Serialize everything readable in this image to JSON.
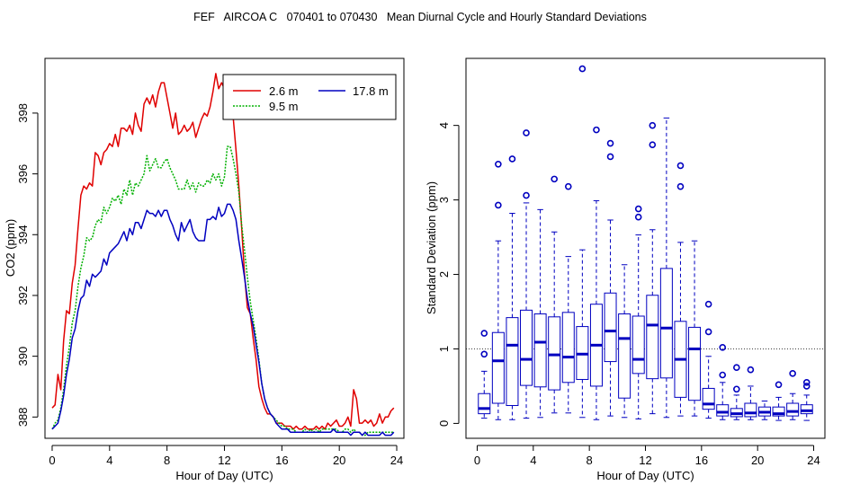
{
  "title": "FEF   AIRCOA C   070401 to 070430   Mean Diurnal Cycle and Hourly Standard Deviations",
  "colors": {
    "series_2_6": "#e00000",
    "series_9_5": "#00b000",
    "series_17_8": "#0000c0",
    "box": "#0000c0",
    "axis": "#000000"
  },
  "chart_data": [
    {
      "type": "line",
      "xlabel": "Hour of Day (UTC)",
      "ylabel": "CO2 (ppm)",
      "xlim": [
        -0.5,
        24.5
      ],
      "ylim": [
        387.3,
        399.8
      ],
      "xticks": [
        0,
        4,
        8,
        12,
        16,
        20,
        24
      ],
      "yticks": [
        388,
        390,
        392,
        394,
        396,
        398
      ],
      "legend_position": "top-right",
      "series": [
        {
          "name": "2.6 m",
          "color": "#e00000",
          "x": [
            0,
            0.2,
            0.4,
            0.6,
            0.8,
            1.0,
            1.2,
            1.4,
            1.6,
            1.8,
            2.0,
            2.2,
            2.4,
            2.6,
            2.8,
            3.0,
            3.2,
            3.4,
            3.6,
            3.8,
            4.0,
            4.2,
            4.4,
            4.6,
            4.8,
            5.0,
            5.2,
            5.4,
            5.6,
            5.8,
            6.0,
            6.2,
            6.4,
            6.6,
            6.8,
            7.0,
            7.2,
            7.4,
            7.6,
            7.8,
            8.0,
            8.2,
            8.4,
            8.6,
            8.8,
            9.0,
            9.2,
            9.4,
            9.6,
            9.8,
            10.0,
            10.2,
            10.4,
            10.6,
            10.8,
            11.0,
            11.2,
            11.4,
            11.6,
            11.8,
            12.0,
            12.2,
            12.4,
            12.6,
            12.8,
            13.0,
            13.2,
            13.4,
            13.6,
            13.8,
            14.0,
            14.2,
            14.4,
            14.6,
            14.8,
            15.0,
            15.2,
            15.4,
            15.6,
            15.8,
            16.0,
            16.2,
            16.4,
            16.6,
            16.8,
            17.0,
            17.2,
            17.4,
            17.6,
            17.8,
            18.0,
            18.2,
            18.4,
            18.6,
            18.8,
            19.0,
            19.2,
            19.4,
            19.6,
            19.8,
            20.0,
            20.2,
            20.4,
            20.6,
            20.8,
            21.0,
            21.2,
            21.4,
            21.6,
            21.8,
            22.0,
            22.2,
            22.4,
            22.6,
            22.8,
            23.0,
            23.2,
            23.4,
            23.6,
            23.8
          ],
          "y": [
            388.3,
            388.4,
            389.4,
            388.9,
            390.5,
            391.5,
            391.4,
            392.4,
            393.0,
            394.2,
            395.3,
            395.6,
            395.5,
            395.7,
            395.6,
            396.7,
            396.6,
            396.3,
            396.7,
            396.8,
            397.0,
            396.9,
            397.3,
            396.9,
            397.5,
            397.5,
            397.4,
            397.6,
            397.3,
            398.0,
            397.6,
            397.4,
            398.3,
            398.5,
            398.3,
            398.6,
            398.2,
            398.7,
            399.0,
            399.0,
            398.5,
            398.0,
            397.5,
            398.0,
            397.3,
            397.4,
            397.6,
            397.4,
            397.5,
            397.7,
            397.2,
            397.5,
            397.8,
            398.0,
            397.9,
            398.2,
            398.7,
            399.3,
            398.8,
            399.0,
            398.8,
            398.5,
            398.2,
            397.9,
            396.8,
            395.6,
            394.2,
            392.7,
            391.6,
            391.4,
            390.6,
            389.9,
            389.0,
            388.6,
            388.3,
            388.1,
            388.1,
            388.0,
            387.8,
            387.8,
            387.8,
            387.7,
            387.7,
            387.7,
            387.6,
            387.7,
            387.6,
            387.6,
            387.7,
            387.6,
            387.6,
            387.6,
            387.7,
            387.6,
            387.7,
            387.6,
            387.8,
            387.7,
            387.8,
            387.9,
            387.7,
            387.7,
            387.8,
            388.0,
            387.7,
            388.9,
            388.6,
            387.8,
            387.8,
            387.9,
            387.8,
            387.9,
            387.7,
            387.8,
            388.1,
            387.8,
            388.0,
            388.0,
            388.2,
            388.3
          ],
          "legend_label": "2.6 m"
        },
        {
          "name": "9.5 m",
          "color": "#00b000",
          "x": [
            0,
            0.2,
            0.4,
            0.6,
            0.8,
            1.0,
            1.2,
            1.4,
            1.6,
            1.8,
            2.0,
            2.2,
            2.4,
            2.6,
            2.8,
            3.0,
            3.2,
            3.4,
            3.6,
            3.8,
            4.0,
            4.2,
            4.4,
            4.6,
            4.8,
            5.0,
            5.2,
            5.4,
            5.6,
            5.8,
            6.0,
            6.2,
            6.4,
            6.6,
            6.8,
            7.0,
            7.2,
            7.4,
            7.6,
            7.8,
            8.0,
            8.2,
            8.4,
            8.6,
            8.8,
            9.0,
            9.2,
            9.4,
            9.6,
            9.8,
            10.0,
            10.2,
            10.4,
            10.6,
            10.8,
            11.0,
            11.2,
            11.4,
            11.6,
            11.8,
            12.0,
            12.2,
            12.4,
            12.6,
            12.8,
            13.0,
            13.2,
            13.4,
            13.6,
            13.8,
            14.0,
            14.2,
            14.4,
            14.6,
            14.8,
            15.0,
            15.2,
            15.4,
            15.6,
            15.8,
            16.0,
            16.2,
            16.4,
            16.6,
            16.8,
            17.0,
            17.2,
            17.4,
            17.6,
            17.8,
            18.0,
            18.2,
            18.4,
            18.6,
            18.8,
            19.0,
            19.2,
            19.4,
            19.6,
            19.8,
            20.0,
            20.2,
            20.4,
            20.6,
            20.8,
            21.0,
            21.2,
            21.4,
            21.6,
            21.8,
            22.0,
            22.2,
            22.4,
            22.6,
            22.8,
            23.0,
            23.2,
            23.4,
            23.6,
            23.8
          ],
          "y": [
            387.6,
            387.8,
            387.9,
            388.3,
            388.9,
            389.7,
            390.3,
            391.1,
            391.5,
            392.3,
            392.9,
            393.3,
            393.9,
            393.8,
            393.9,
            394.3,
            394.5,
            394.4,
            394.9,
            394.7,
            394.9,
            395.2,
            395.1,
            395.3,
            395.0,
            395.5,
            395.3,
            395.8,
            395.3,
            395.7,
            395.6,
            395.8,
            396.0,
            396.6,
            396.1,
            396.3,
            396.5,
            396.2,
            396.2,
            396.4,
            396.5,
            396.2,
            396.0,
            395.8,
            395.5,
            395.5,
            395.5,
            395.8,
            395.5,
            395.7,
            395.4,
            395.7,
            395.6,
            395.6,
            395.8,
            395.7,
            396.0,
            395.8,
            396.0,
            395.6,
            395.9,
            396.9,
            396.9,
            396.5,
            396.0,
            395.4,
            394.3,
            393.5,
            392.6,
            391.8,
            391.2,
            390.6,
            389.9,
            389.1,
            388.6,
            388.3,
            388.1,
            388.0,
            387.9,
            387.8,
            387.7,
            387.7,
            387.6,
            387.6,
            387.6,
            387.5,
            387.5,
            387.5,
            387.6,
            387.5,
            387.6,
            387.5,
            387.6,
            387.5,
            387.6,
            387.6,
            387.6,
            387.6,
            387.6,
            387.6,
            387.5,
            387.5,
            387.6,
            387.6,
            387.5,
            387.6,
            387.5,
            387.5,
            387.4,
            387.4,
            387.5,
            387.5,
            387.5,
            387.5,
            387.5,
            387.5,
            387.5,
            387.5,
            387.5,
            387.5
          ],
          "legend_label": "9.5 m"
        },
        {
          "name": "17.8 m",
          "color": "#0000c0",
          "x": [
            0,
            0.2,
            0.4,
            0.6,
            0.8,
            1.0,
            1.2,
            1.4,
            1.6,
            1.8,
            2.0,
            2.2,
            2.4,
            2.6,
            2.8,
            3.0,
            3.2,
            3.4,
            3.6,
            3.8,
            4.0,
            4.2,
            4.4,
            4.6,
            4.8,
            5.0,
            5.2,
            5.4,
            5.6,
            5.8,
            6.0,
            6.2,
            6.4,
            6.6,
            6.8,
            7.0,
            7.2,
            7.4,
            7.6,
            7.8,
            8.0,
            8.2,
            8.4,
            8.6,
            8.8,
            9.0,
            9.2,
            9.4,
            9.6,
            9.8,
            10.0,
            10.2,
            10.4,
            10.6,
            10.8,
            11.0,
            11.2,
            11.4,
            11.6,
            11.8,
            12.0,
            12.2,
            12.4,
            12.6,
            12.8,
            13.0,
            13.2,
            13.4,
            13.6,
            13.8,
            14.0,
            14.2,
            14.4,
            14.6,
            14.8,
            15.0,
            15.2,
            15.4,
            15.6,
            15.8,
            16.0,
            16.2,
            16.4,
            16.6,
            16.8,
            17.0,
            17.2,
            17.4,
            17.6,
            17.8,
            18.0,
            18.2,
            18.4,
            18.6,
            18.8,
            19.0,
            19.2,
            19.4,
            19.6,
            19.8,
            20.0,
            20.2,
            20.4,
            20.6,
            20.8,
            21.0,
            21.2,
            21.4,
            21.6,
            21.8,
            22.0,
            22.2,
            22.4,
            22.6,
            22.8,
            23.0,
            23.2,
            23.4,
            23.6,
            23.8
          ],
          "y": [
            387.6,
            387.7,
            387.8,
            388.2,
            388.7,
            389.4,
            389.9,
            390.6,
            390.9,
            391.5,
            391.9,
            392.0,
            392.5,
            392.3,
            392.7,
            392.6,
            392.7,
            392.8,
            393.2,
            393.0,
            393.4,
            393.5,
            393.6,
            393.7,
            393.9,
            394.1,
            393.8,
            394.2,
            394.0,
            394.4,
            394.4,
            394.2,
            394.5,
            394.8,
            394.7,
            394.7,
            394.6,
            394.8,
            394.6,
            394.8,
            394.8,
            394.5,
            394.3,
            394.0,
            393.8,
            394.4,
            394.1,
            394.3,
            394.5,
            394.1,
            393.9,
            393.8,
            393.8,
            393.8,
            394.5,
            394.5,
            394.6,
            394.5,
            394.9,
            394.6,
            394.7,
            395.0,
            395.0,
            394.8,
            394.5,
            393.8,
            393.2,
            392.6,
            391.9,
            391.4,
            391.0,
            390.4,
            389.8,
            389.1,
            388.6,
            388.3,
            388.1,
            388.0,
            387.8,
            387.7,
            387.6,
            387.6,
            387.6,
            387.5,
            387.5,
            387.5,
            387.5,
            387.5,
            387.5,
            387.5,
            387.5,
            387.5,
            387.5,
            387.5,
            387.5,
            387.5,
            387.5,
            387.5,
            387.6,
            387.5,
            387.5,
            387.5,
            387.5,
            387.5,
            387.4,
            387.5,
            387.5,
            387.5,
            387.4,
            387.5,
            387.4,
            387.4,
            387.4,
            387.4,
            387.4,
            387.5,
            387.4,
            387.4,
            387.4,
            387.5
          ],
          "legend_label": "17.8 m"
        }
      ]
    },
    {
      "type": "box",
      "xlabel": "Hour of Day (UTC)",
      "ylabel": "Standard Deviation (ppm)",
      "xlim": [
        -0.8,
        24.8
      ],
      "ylim": [
        -0.2,
        4.9
      ],
      "xticks": [
        0,
        4,
        8,
        12,
        16,
        20,
        24
      ],
      "yticks": [
        0,
        1,
        2,
        3,
        4
      ],
      "reference_line": 1,
      "boxes": [
        {
          "x": 0.5,
          "min": 0.07,
          "q1": 0.13,
          "median": 0.2,
          "q3": 0.4,
          "max": 0.7,
          "outliers": [
            0.93,
            1.21
          ]
        },
        {
          "x": 1.5,
          "min": 0.05,
          "q1": 0.27,
          "median": 0.84,
          "q3": 1.22,
          "max": 2.45,
          "outliers": [
            2.93,
            3.48
          ]
        },
        {
          "x": 2.5,
          "min": 0.05,
          "q1": 0.24,
          "median": 1.05,
          "q3": 1.42,
          "max": 2.82,
          "outliers": [
            3.55
          ]
        },
        {
          "x": 3.5,
          "min": 0.07,
          "q1": 0.51,
          "median": 0.86,
          "q3": 1.52,
          "max": 2.96,
          "outliers": [
            3.06,
            3.9
          ]
        },
        {
          "x": 4.5,
          "min": 0.08,
          "q1": 0.49,
          "median": 1.09,
          "q3": 1.47,
          "max": 2.87,
          "outliers": []
        },
        {
          "x": 5.5,
          "min": 0.14,
          "q1": 0.45,
          "median": 0.92,
          "q3": 1.43,
          "max": 2.57,
          "outliers": [
            3.28
          ]
        },
        {
          "x": 6.5,
          "min": 0.14,
          "q1": 0.55,
          "median": 0.89,
          "q3": 1.49,
          "max": 2.24,
          "outliers": [
            3.18
          ]
        },
        {
          "x": 7.5,
          "min": 0.08,
          "q1": 0.59,
          "median": 0.93,
          "q3": 1.3,
          "max": 2.33,
          "outliers": [
            4.76
          ]
        },
        {
          "x": 8.5,
          "min": 0.05,
          "q1": 0.5,
          "median": 1.05,
          "q3": 1.6,
          "max": 2.99,
          "outliers": [
            3.94
          ]
        },
        {
          "x": 9.5,
          "min": 0.1,
          "q1": 0.83,
          "median": 1.24,
          "q3": 1.75,
          "max": 2.73,
          "outliers": [
            3.58,
            3.76
          ]
        },
        {
          "x": 10.5,
          "min": 0.08,
          "q1": 0.34,
          "median": 1.14,
          "q3": 1.47,
          "max": 2.13,
          "outliers": []
        },
        {
          "x": 11.5,
          "min": 0.06,
          "q1": 0.67,
          "median": 0.86,
          "q3": 1.44,
          "max": 2.53,
          "outliers": [
            2.77,
            2.88
          ]
        },
        {
          "x": 12.5,
          "min": 0.13,
          "q1": 0.6,
          "median": 1.32,
          "q3": 1.72,
          "max": 2.6,
          "outliers": [
            3.74,
            4.0
          ]
        },
        {
          "x": 13.5,
          "min": 0.08,
          "q1": 0.61,
          "median": 1.28,
          "q3": 2.08,
          "max": 4.1,
          "outliers": []
        },
        {
          "x": 14.5,
          "min": 0.1,
          "q1": 0.35,
          "median": 0.86,
          "q3": 1.37,
          "max": 2.43,
          "outliers": [
            3.18,
            3.46
          ]
        },
        {
          "x": 15.5,
          "min": 0.1,
          "q1": 0.31,
          "median": 1.0,
          "q3": 1.29,
          "max": 2.45,
          "outliers": []
        },
        {
          "x": 16.5,
          "min": 0.07,
          "q1": 0.19,
          "median": 0.26,
          "q3": 0.47,
          "max": 0.9,
          "outliers": [
            1.23,
            1.6
          ]
        },
        {
          "x": 17.5,
          "min": 0.05,
          "q1": 0.1,
          "median": 0.15,
          "q3": 0.25,
          "max": 0.55,
          "outliers": [
            0.65,
            1.02
          ]
        },
        {
          "x": 18.5,
          "min": 0.05,
          "q1": 0.09,
          "median": 0.13,
          "q3": 0.2,
          "max": 0.38,
          "outliers": [
            0.46,
            0.75
          ]
        },
        {
          "x": 19.5,
          "min": 0.05,
          "q1": 0.09,
          "median": 0.14,
          "q3": 0.27,
          "max": 0.5,
          "outliers": [
            0.72
          ]
        },
        {
          "x": 20.5,
          "min": 0.05,
          "q1": 0.1,
          "median": 0.15,
          "q3": 0.22,
          "max": 0.3,
          "outliers": []
        },
        {
          "x": 21.5,
          "min": 0.04,
          "q1": 0.1,
          "median": 0.13,
          "q3": 0.22,
          "max": 0.35,
          "outliers": [
            0.52
          ]
        },
        {
          "x": 22.5,
          "min": 0.05,
          "q1": 0.1,
          "median": 0.16,
          "q3": 0.27,
          "max": 0.4,
          "outliers": [
            0.67
          ]
        },
        {
          "x": 23.5,
          "min": 0.04,
          "q1": 0.13,
          "median": 0.17,
          "q3": 0.25,
          "max": 0.38,
          "outliers": [
            0.5,
            0.55
          ]
        }
      ]
    }
  ]
}
